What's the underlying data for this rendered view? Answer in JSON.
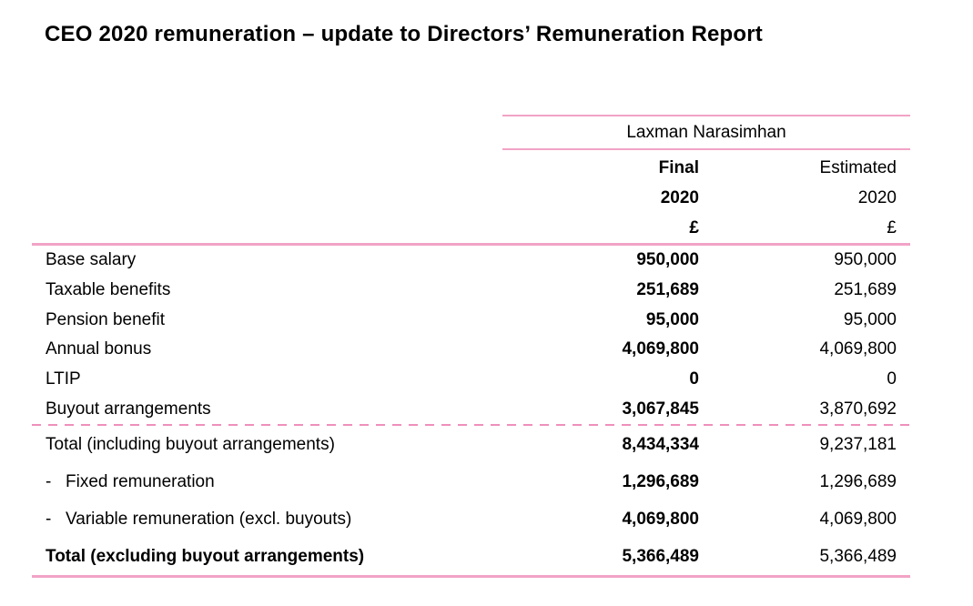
{
  "page": {
    "title": "CEO 2020 remuneration – update to Directors’ Remuneration Report"
  },
  "theme": {
    "rule_pink": "#f2a3c6",
    "dashed_rule_pink": "#ef8fbc",
    "text_color": "#000000",
    "background": "#ffffff"
  },
  "table": {
    "group_header": "Laxman Narasimhan",
    "col_final": {
      "line1": "Final",
      "line2": "2020",
      "line3": "£"
    },
    "col_estimated": {
      "line1": "Estimated",
      "line2": "2020",
      "line3": "£"
    },
    "rows": [
      {
        "prefix": "",
        "label": "Base salary",
        "final": "950,000",
        "estimated": "950,000"
      },
      {
        "prefix": "",
        "label": "Taxable benefits",
        "final": "251,689",
        "estimated": "251,689"
      },
      {
        "prefix": "",
        "label": "Pension benefit",
        "final": "95,000",
        "estimated": "95,000"
      },
      {
        "prefix": "",
        "label": "Annual bonus",
        "final": "4,069,800",
        "estimated": "4,069,800"
      },
      {
        "prefix": "",
        "label": "LTIP",
        "final": "0",
        "estimated": "0"
      },
      {
        "prefix": "",
        "label": "Buyout arrangements",
        "final": "3,067,845",
        "estimated": "3,870,692"
      }
    ],
    "totals": [
      {
        "prefix": "",
        "label": "Total (including buyout arrangements)",
        "final": "8,434,334",
        "estimated": "9,237,181"
      },
      {
        "prefix": "-",
        "label": "Fixed remuneration",
        "final": "1,296,689",
        "estimated": "1,296,689"
      },
      {
        "prefix": "-",
        "label": "Variable remuneration (excl. buyouts)",
        "final": "4,069,800",
        "estimated": "4,069,800"
      },
      {
        "prefix": "",
        "label": "Total (excluding buyout arrangements)",
        "final": "5,366,489",
        "estimated": "5,366,489"
      }
    ]
  }
}
